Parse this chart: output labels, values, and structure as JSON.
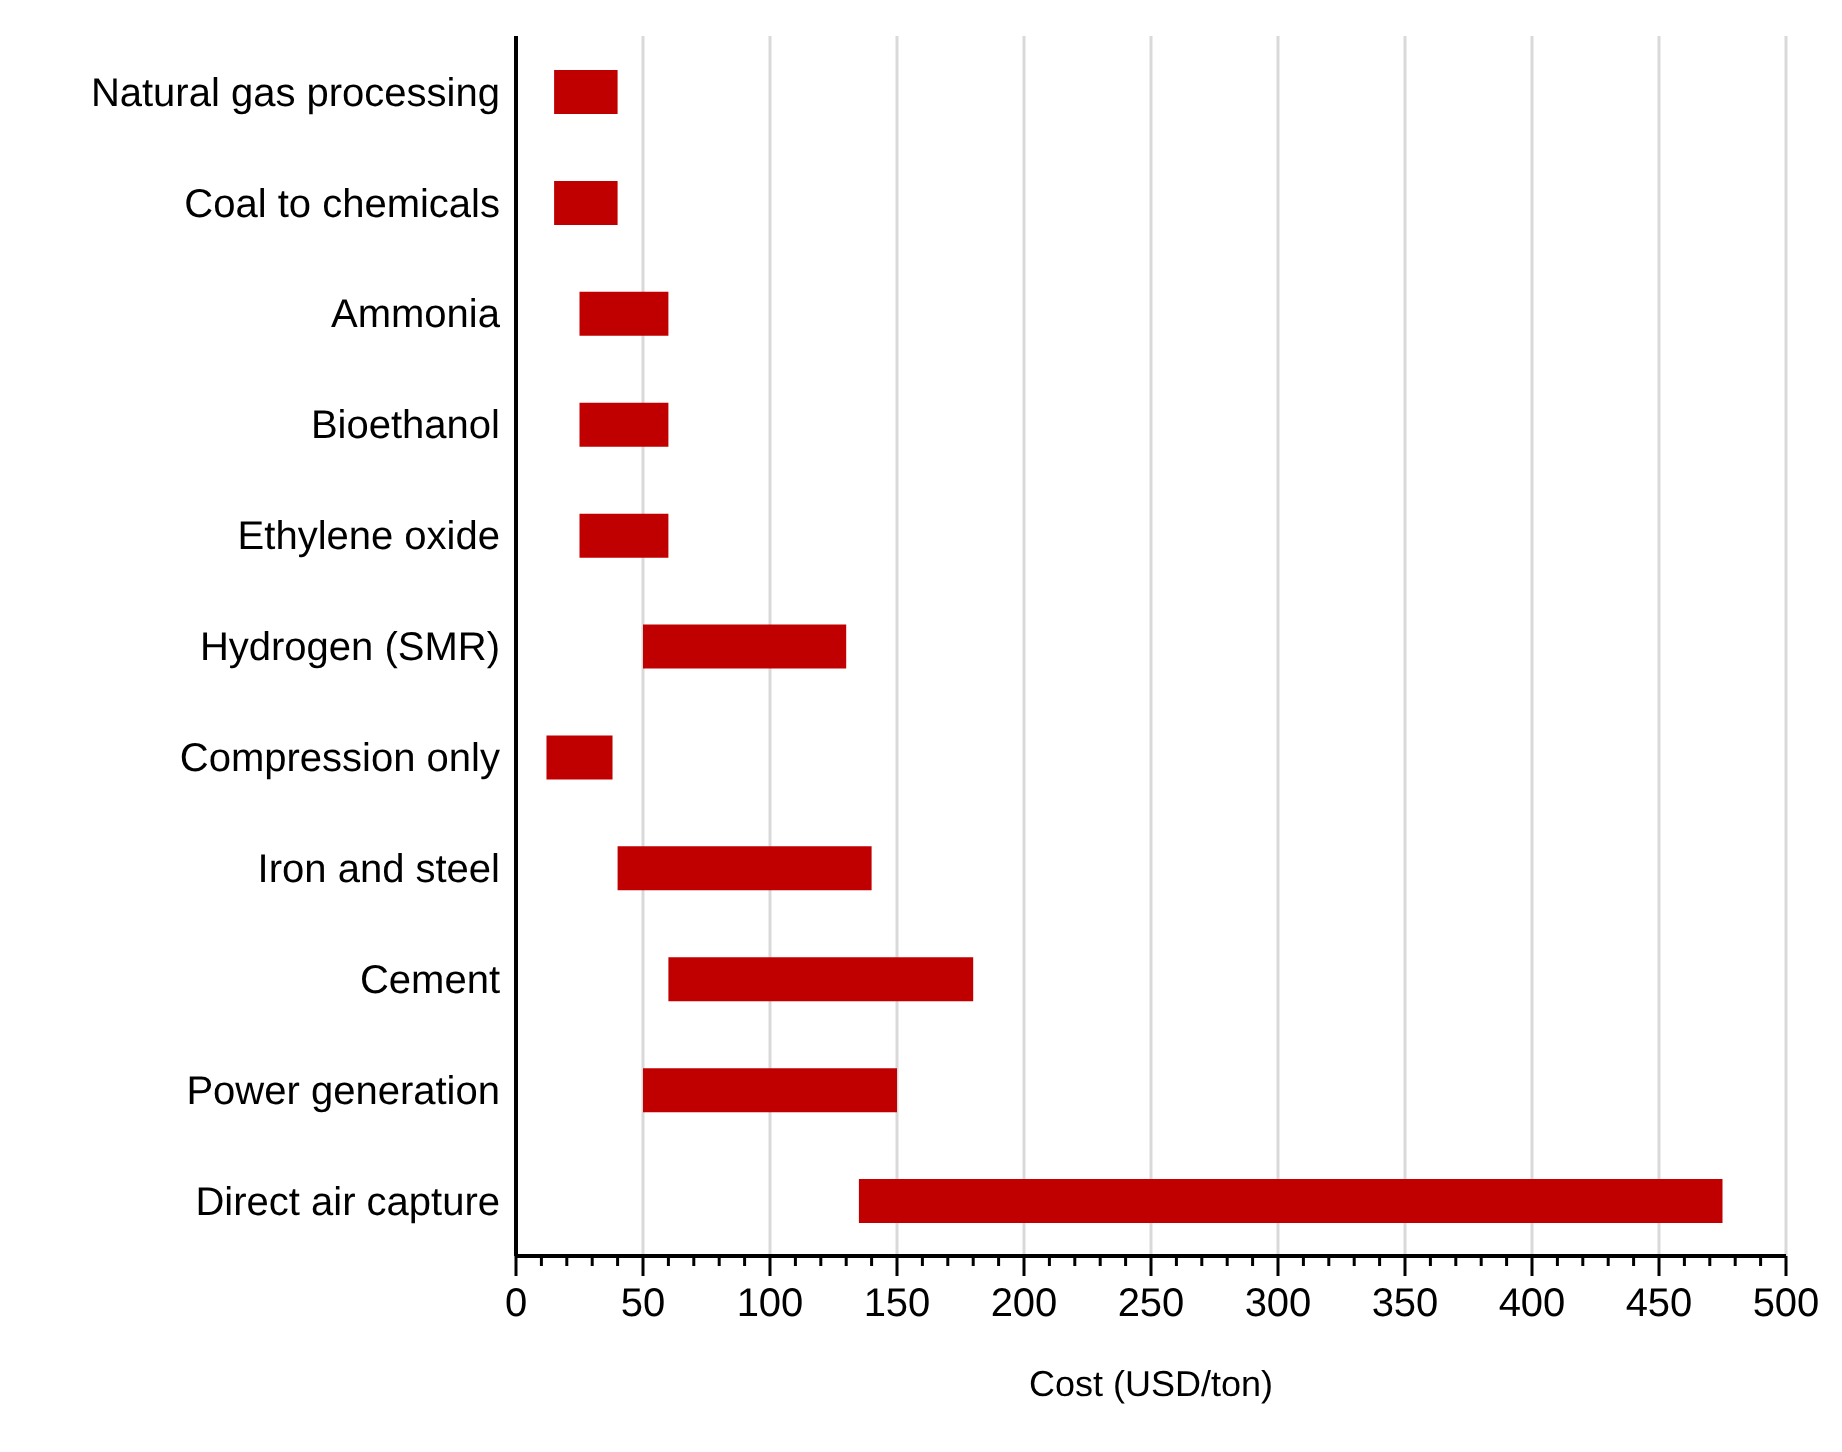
{
  "chart_data": {
    "type": "bar",
    "orientation": "horizontal",
    "xlabel": "Cost (USD/ton)",
    "categories": [
      "Natural gas processing",
      "Coal to chemicals",
      "Ammonia",
      "Bioethanol",
      "Ethylene oxide",
      "Hydrogen (SMR)",
      "Compression only",
      "Iron and steel",
      "Cement",
      "Power generation",
      "Direct air capture"
    ],
    "base": [
      15,
      15,
      25,
      25,
      25,
      50,
      12,
      40,
      60,
      50,
      135
    ],
    "values": [
      25,
      25,
      35,
      35,
      35,
      80,
      26,
      100,
      120,
      100,
      340
    ],
    "color": "#c00000",
    "xlim": [
      0,
      500
    ],
    "xticks": [
      0,
      {
        "value": 10,
        "label": null
      },
      {
        "value": 20,
        "label": null
      },
      {
        "value": 30,
        "label": null
      },
      {
        "value": 40,
        "label": null
      },
      50,
      {
        "value": 60,
        "label": null
      },
      {
        "value": 70,
        "label": null
      },
      {
        "value": 80,
        "label": null
      },
      {
        "value": 90,
        "label": null
      },
      100,
      {
        "value": 110,
        "label": null
      },
      {
        "value": 120,
        "label": null
      },
      {
        "value": 130,
        "label": null
      },
      {
        "value": 140,
        "label": null
      },
      150,
      {
        "value": 160,
        "label": null
      },
      {
        "value": 170,
        "label": null
      },
      {
        "value": 180,
        "label": null
      },
      {
        "value": 190,
        "label": null
      },
      200,
      {
        "value": 210,
        "label": null
      },
      {
        "value": 220,
        "label": null
      },
      {
        "value": 230,
        "label": null
      },
      {
        "value": 240,
        "label": null
      },
      250,
      {
        "value": 260,
        "label": null
      },
      {
        "value": 270,
        "label": null
      },
      {
        "value": 280,
        "label": null
      },
      {
        "value": 290,
        "label": null
      },
      300,
      {
        "value": 310,
        "label": null
      },
      {
        "value": 320,
        "label": null
      },
      {
        "value": 330,
        "label": null
      },
      {
        "value": 340,
        "label": null
      },
      350,
      {
        "value": 360,
        "label": null
      },
      {
        "value": 370,
        "label": null
      },
      {
        "value": 380,
        "label": null
      },
      {
        "value": 390,
        "label": null
      },
      400,
      {
        "value": 410,
        "label": null
      },
      {
        "value": 420,
        "label": null
      },
      {
        "value": 430,
        "label": null
      },
      {
        "value": 440,
        "label": null
      },
      450,
      {
        "value": 460,
        "label": null
      },
      {
        "value": 470,
        "label": null
      },
      {
        "value": 480,
        "label": null
      },
      {
        "value": 490,
        "label": null
      },
      500
    ],
    "grid": "x"
  }
}
